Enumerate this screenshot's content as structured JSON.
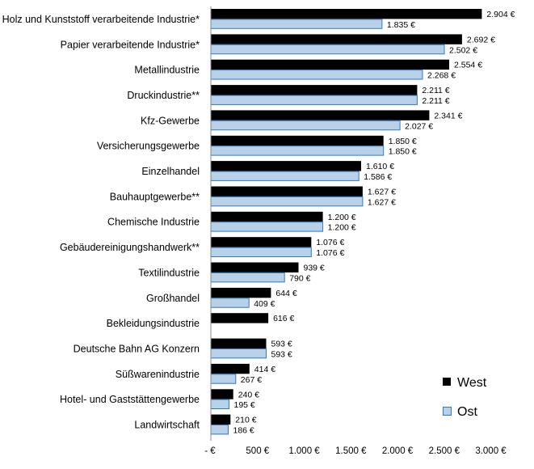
{
  "chart_data": {
    "type": "bar",
    "orientation": "horizontal",
    "categories": [
      "Holz und Kunststoff verarbeitende Industrie*",
      "Papier verarbeitende Industrie*",
      "Metallindustrie",
      "Druckindustrie**",
      "Kfz-Gewerbe",
      "Versicherungsgewerbe",
      "Einzelhandel",
      "Bauhauptgewerbe**",
      "Chemische Industrie",
      "Gebäudereinigungshandwerk**",
      "Textilindustrie",
      "Großhandel",
      "Bekleidungsindustrie",
      "Deutsche Bahn AG Konzern",
      "Süßwarenindustrie",
      "Hotel- und Gaststättengewerbe",
      "Landwirtschaft"
    ],
    "series": [
      {
        "name": "West",
        "color": "#000000",
        "values": [
          2904,
          2692,
          2554,
          2211,
          2341,
          1850,
          1610,
          1627,
          1200,
          1076,
          939,
          644,
          616,
          593,
          414,
          240,
          210
        ],
        "labels": [
          "2.904 €",
          "2.692 €",
          "2.554 €",
          "2.211 €",
          "2.341 €",
          "1.850 €",
          "1.610 €",
          "1.627 €",
          "1.200 €",
          "1.076 €",
          "939 €",
          "644 €",
          "616 €",
          "593 €",
          "414 €",
          "240 €",
          "210 €"
        ]
      },
      {
        "name": "Ost",
        "color": "#b8d0e8",
        "values": [
          1835,
          2502,
          2268,
          2211,
          2027,
          1850,
          1586,
          1627,
          1200,
          1076,
          790,
          409,
          null,
          593,
          267,
          195,
          186
        ],
        "labels": [
          "1.835 €",
          "2.502 €",
          "2.268 €",
          "2.211 €",
          "2.027 €",
          "1.850 €",
          "1.586 €",
          "1.627 €",
          "1.200 €",
          "1.076 €",
          "790 €",
          "409 €",
          "",
          "593 €",
          "267 €",
          "195 €",
          "186 €"
        ]
      }
    ],
    "x_ticks": [
      0,
      500,
      1000,
      1500,
      2000,
      2500,
      3000
    ],
    "x_tick_labels": [
      "-  €",
      "500 €",
      "1.000 €",
      "1.500 €",
      "2.000 €",
      "2.500 €",
      "3.000 €"
    ],
    "xlim": [
      0,
      3000
    ],
    "grid": false,
    "legend_position": "bottom-right"
  }
}
